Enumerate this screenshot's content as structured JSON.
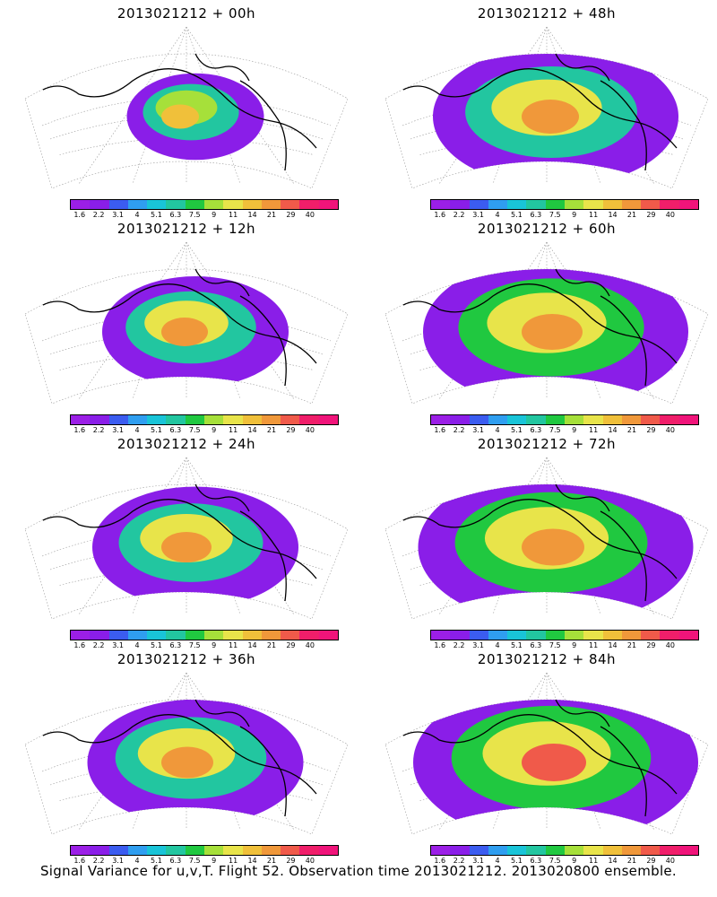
{
  "panels": [
    {
      "title": "2013021212 + 00h",
      "intensity": 0.15
    },
    {
      "title": "2013021212 + 48h",
      "intensity": 0.7
    },
    {
      "title": "2013021212 + 12h",
      "intensity": 0.4
    },
    {
      "title": "2013021212 + 60h",
      "intensity": 0.8
    },
    {
      "title": "2013021212 + 24h",
      "intensity": 0.5
    },
    {
      "title": "2013021212 + 72h",
      "intensity": 0.85
    },
    {
      "title": "2013021212 + 36h",
      "intensity": 0.55
    },
    {
      "title": "2013021212 + 84h",
      "intensity": 0.9
    }
  ],
  "colorbar": {
    "labels": [
      "1.6",
      "2.2",
      "3.1",
      "4",
      "5.1",
      "6.3",
      "7.5",
      "9",
      "11",
      "14",
      "21",
      "29",
      "40"
    ],
    "colors": [
      "#9b1fe6",
      "#8a1ee8",
      "#3b5cf0",
      "#2f9ef0",
      "#19c4d8",
      "#22c6a0",
      "#20c840",
      "#a6e03a",
      "#e8e44a",
      "#f0c03a",
      "#f0983a",
      "#f05a4a",
      "#f01e6a",
      "#f0147a"
    ]
  },
  "footer": "Signal Variance for u,v,T. Flight 52. Observation time 2013021212. 2013020800 ensemble."
}
